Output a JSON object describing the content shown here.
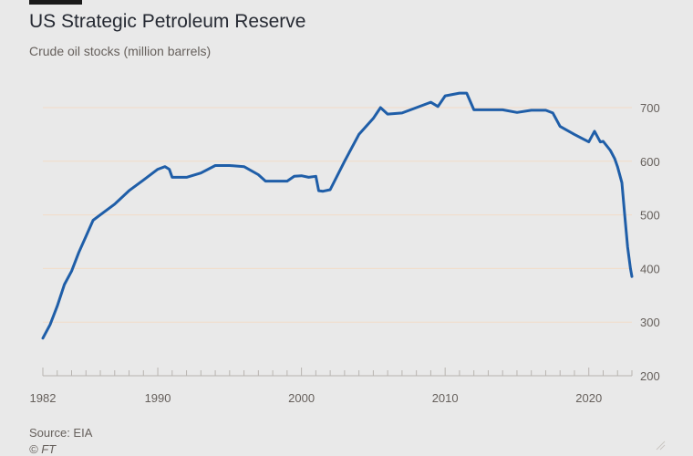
{
  "header": {
    "title": "US Strategic Petroleum Reserve",
    "subtitle": "Crude oil stocks (million barrels)"
  },
  "footer": {
    "source": "Source: EIA",
    "copyright": "© FT"
  },
  "icons": {
    "resize": "resize-handle-icon"
  },
  "colors": {
    "background": "#e9e9e9",
    "line": "#1f5ea8",
    "grid": "#f2dcc8",
    "text": "#66605c"
  },
  "chart_data": {
    "type": "line",
    "title": "US Strategic Petroleum Reserve",
    "subtitle": "Crude oil stocks (million barrels)",
    "xlabel": "",
    "ylabel": "",
    "xlim": [
      1982,
      2023
    ],
    "ylim": [
      200,
      700
    ],
    "x_ticks": [
      1982,
      1990,
      2000,
      2010,
      2020
    ],
    "y_ticks": [
      200,
      300,
      400,
      500,
      600,
      700
    ],
    "y_axis_position": "right",
    "grid": true,
    "legend": "none",
    "series": [
      {
        "x": [
          1982.0,
          1982.5,
          1983.0,
          1983.5,
          1984.0,
          1984.5,
          1985.0,
          1985.5,
          1986.0,
          1987.0,
          1988.0,
          1989.0,
          1990.0,
          1990.5,
          1990.8,
          1991.0,
          1992.0,
          1993.0,
          1994.0,
          1995.0,
          1996.0,
          1997.0,
          1997.5,
          1998.0,
          1999.0,
          1999.5,
          2000.0,
          2000.5,
          2001.0,
          2001.2,
          2001.5,
          2002.0,
          2003.0,
          2004.0,
          2005.0,
          2005.5,
          2006.0,
          2007.0,
          2008.0,
          2009.0,
          2009.5,
          2010.0,
          2011.0,
          2011.5,
          2012.0,
          2013.0,
          2014.0,
          2015.0,
          2016.0,
          2017.0,
          2017.5,
          2018.0,
          2019.0,
          2020.0,
          2020.4,
          2020.8,
          2021.0,
          2021.5,
          2021.8,
          2022.0,
          2022.3,
          2022.5,
          2022.7,
          2022.9,
          2023.0
        ],
        "y": [
          270,
          295,
          330,
          370,
          395,
          430,
          460,
          490,
          500,
          520,
          545,
          565,
          585,
          590,
          585,
          570,
          570,
          578,
          592,
          592,
          590,
          575,
          563,
          563,
          563,
          572,
          573,
          570,
          572,
          545,
          544,
          547,
          600,
          650,
          680,
          700,
          688,
          690,
          700,
          710,
          702,
          722,
          727,
          727,
          696,
          696,
          696,
          691,
          695,
          695,
          690,
          665,
          650,
          636,
          656,
          636,
          637,
          620,
          605,
          590,
          560,
          500,
          440,
          400,
          385
        ]
      }
    ]
  }
}
